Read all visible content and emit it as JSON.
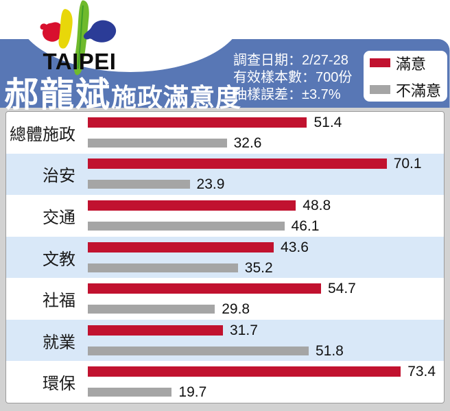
{
  "header": {
    "logo_text": "TAIPEI",
    "title_main": "郝龍斌",
    "title_sub": "施政滿意度",
    "survey": {
      "line1": "調查日期：2/27-28",
      "line2": "有效樣本數：700份",
      "line3": "抽樣誤差：±3.7%"
    },
    "legend": [
      {
        "label": "滿意",
        "color": "#c1122f"
      },
      {
        "label": "不滿意",
        "color": "#a5a5a5"
      }
    ]
  },
  "chart_data": {
    "type": "bar",
    "orientation": "horizontal",
    "title": "郝龍斌施政滿意度",
    "categories": [
      "總體施政",
      "治安",
      "交通",
      "文教",
      "社福",
      "就業",
      "環保"
    ],
    "series": [
      {
        "name": "滿意",
        "color": "#c1122f",
        "values": [
          51.4,
          70.1,
          48.8,
          43.6,
          54.7,
          31.7,
          73.4
        ]
      },
      {
        "name": "不滿意",
        "color": "#a5a5a5",
        "values": [
          32.6,
          23.9,
          46.1,
          35.2,
          29.8,
          51.8,
          19.7
        ]
      }
    ],
    "xlim": [
      0,
      83.5
    ],
    "grid": false,
    "legend_position": "top-right",
    "row_alt_background": "#d9e8f8"
  },
  "colors": {
    "header_blue": "#5877b5",
    "page_gray": "#d2d2d2",
    "logo_red": "#d8102e",
    "logo_yellow": "#e8d70a",
    "logo_green": "#6fba2c",
    "logo_blue": "#2b3c97"
  }
}
